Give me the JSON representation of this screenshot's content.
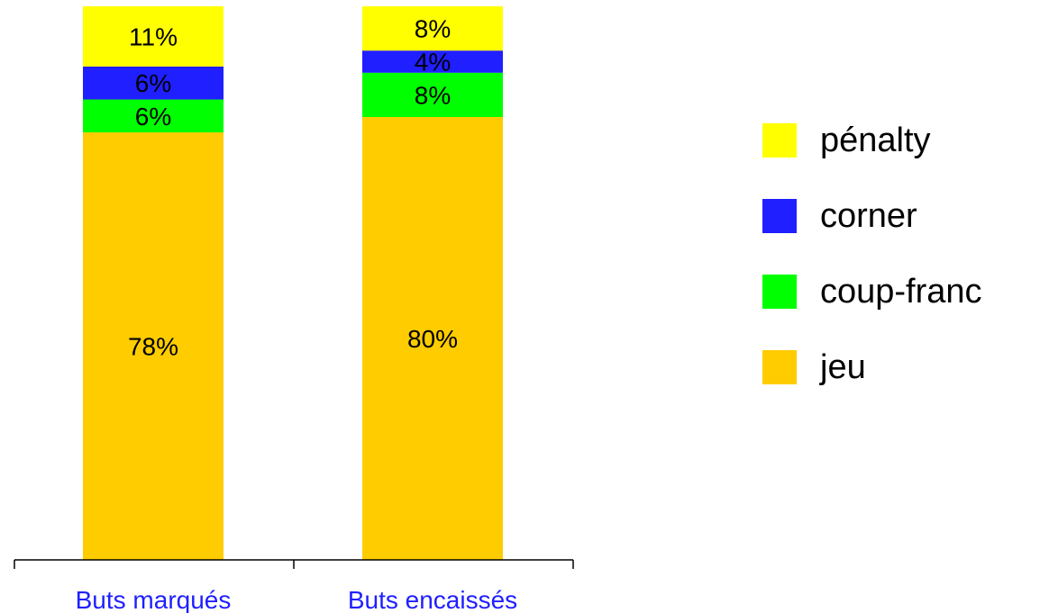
{
  "chart_data": {
    "type": "bar",
    "stacked": true,
    "percent_stacked": true,
    "categories": [
      "Buts marqués",
      "Buts encaissés"
    ],
    "series": [
      {
        "name": "jeu",
        "values": [
          78,
          80
        ],
        "labels": [
          "78%",
          "80%"
        ],
        "color": "#FFCC00"
      },
      {
        "name": "coup-franc",
        "values": [
          6,
          8
        ],
        "labels": [
          "6%",
          "8%"
        ],
        "color": "#00FF00"
      },
      {
        "name": "corner",
        "values": [
          6,
          4
        ],
        "labels": [
          "6%",
          "4%"
        ],
        "color": "#1F1FFF"
      },
      {
        "name": "pénalty",
        "values": [
          11,
          8
        ],
        "labels": [
          "11%",
          "8%"
        ],
        "color": "#FFFF00"
      }
    ],
    "ylim": [
      0,
      100
    ],
    "grid": false,
    "legend_position": "right",
    "category_label_color": "#1F1FFF"
  }
}
